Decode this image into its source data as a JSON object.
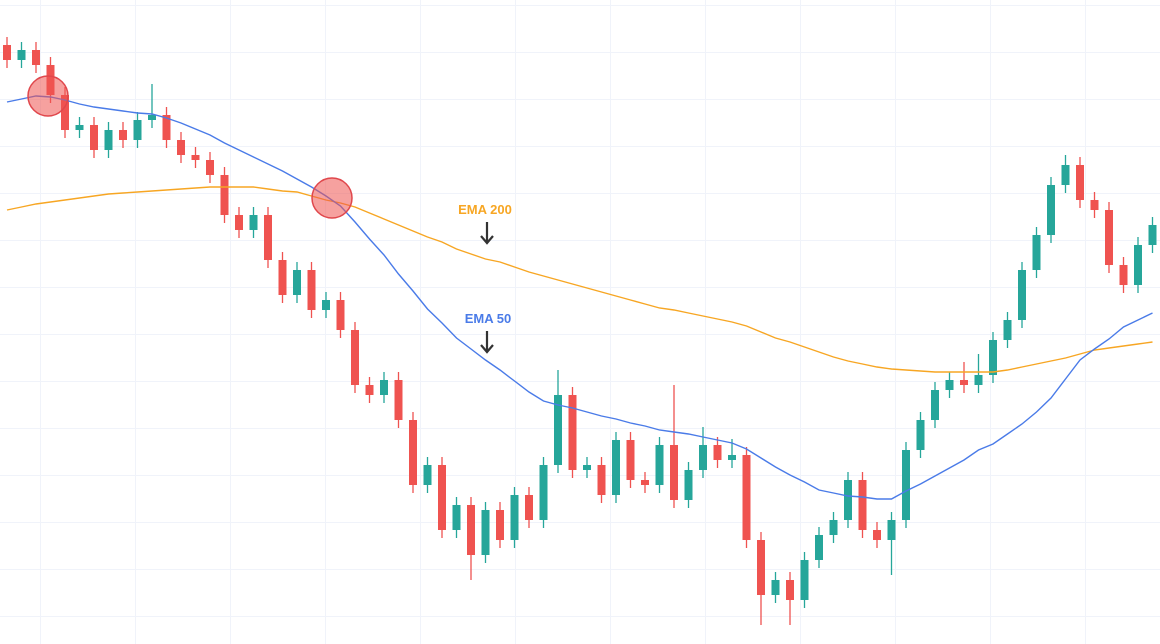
{
  "chart_data": {
    "type": "candlestick",
    "ylim": [
      0,
      644
    ],
    "up_color": "#26a69a",
    "down_color": "#ef5350",
    "open": [
      599,
      584,
      594,
      579,
      549,
      514,
      519,
      494,
      514,
      504,
      524,
      529,
      504,
      489,
      484,
      469,
      429,
      414,
      429,
      384,
      349,
      374,
      334,
      344,
      314,
      259,
      249,
      264,
      224,
      159,
      179,
      114,
      139,
      89,
      134,
      104,
      149,
      124,
      179,
      249,
      174,
      179,
      149,
      204,
      164,
      159,
      199,
      144,
      174,
      199,
      184,
      189,
      104,
      49,
      64,
      44,
      84,
      109,
      124,
      164,
      114,
      104,
      124,
      194,
      224,
      254,
      264,
      259,
      269,
      304,
      324,
      374,
      409,
      459,
      479,
      444,
      434,
      379,
      359,
      399
    ],
    "high": [
      607,
      602,
      602,
      587,
      557,
      527,
      527,
      522,
      522,
      532,
      560,
      537,
      512,
      497,
      492,
      477,
      437,
      437,
      437,
      392,
      382,
      382,
      352,
      352,
      322,
      267,
      272,
      272,
      232,
      187,
      187,
      147,
      147,
      142,
      142,
      157,
      157,
      187,
      274,
      257,
      187,
      187,
      212,
      212,
      172,
      207,
      259,
      182,
      217,
      207,
      205,
      197,
      112,
      72,
      72,
      92,
      117,
      132,
      172,
      172,
      122,
      132,
      202,
      232,
      262,
      272,
      282,
      290,
      312,
      332,
      382,
      417,
      467,
      489,
      487,
      452,
      442,
      387,
      407,
      427
    ],
    "low": [
      576,
      576,
      571,
      541,
      506,
      506,
      486,
      486,
      496,
      496,
      516,
      496,
      481,
      476,
      461,
      421,
      406,
      406,
      376,
      341,
      341,
      326,
      326,
      306,
      251,
      241,
      241,
      216,
      151,
      151,
      106,
      106,
      64,
      81,
      96,
      96,
      116,
      116,
      171,
      166,
      166,
      141,
      141,
      156,
      151,
      151,
      136,
      136,
      166,
      176,
      176,
      96,
      19,
      41,
      19,
      36,
      76,
      101,
      116,
      106,
      96,
      69,
      116,
      186,
      216,
      246,
      251,
      251,
      261,
      296,
      316,
      366,
      401,
      451,
      436,
      426,
      371,
      351,
      351,
      391
    ],
    "close": [
      584,
      594,
      579,
      549,
      514,
      519,
      494,
      514,
      504,
      524,
      529,
      504,
      489,
      484,
      469,
      429,
      414,
      429,
      384,
      349,
      374,
      334,
      344,
      314,
      259,
      249,
      264,
      224,
      159,
      179,
      114,
      139,
      89,
      134,
      104,
      149,
      124,
      179,
      249,
      174,
      179,
      149,
      204,
      164,
      159,
      199,
      144,
      174,
      199,
      184,
      189,
      104,
      49,
      64,
      44,
      84,
      109,
      124,
      164,
      114,
      104,
      124,
      194,
      224,
      254,
      264,
      259,
      269,
      304,
      324,
      374,
      409,
      459,
      479,
      444,
      434,
      379,
      359,
      399,
      419
    ],
    "series": [
      {
        "name": "EMA 200",
        "color": "#f7a623",
        "values": [
          434,
          437,
          440,
          442,
          444,
          446,
          448,
          450,
          451,
          452,
          453,
          454,
          455,
          456,
          457,
          457,
          457,
          457,
          455,
          453,
          452,
          448,
          444,
          441,
          437,
          431,
          425,
          419,
          413,
          407,
          402,
          395,
          390,
          385,
          382,
          377,
          372,
          368,
          364,
          360,
          356,
          352,
          348,
          344,
          340,
          336,
          334,
          331,
          328,
          325,
          322,
          318,
          312,
          306,
          302,
          297,
          292,
          287,
          283,
          280,
          277,
          275,
          274,
          273,
          272,
          272,
          272,
          272,
          272,
          274,
          277,
          280,
          283,
          286,
          290,
          294,
          296,
          298,
          300,
          302
        ]
      },
      {
        "name": "EMA 50",
        "color": "#4a7be8",
        "values": [
          542,
          545,
          548,
          547,
          544,
          540,
          537,
          535,
          533,
          531,
          530,
          526,
          521,
          515,
          509,
          501,
          494,
          487,
          480,
          473,
          465,
          457,
          448,
          438,
          422,
          405,
          389,
          370,
          353,
          335,
          321,
          306,
          295,
          284,
          274,
          263,
          252,
          243,
          239,
          236,
          232,
          228,
          225,
          221,
          218,
          214,
          212,
          210,
          207,
          204,
          201,
          195,
          186,
          177,
          169,
          162,
          154,
          151,
          148,
          147,
          145,
          145,
          153,
          160,
          168,
          176,
          184,
          194,
          200,
          210,
          220,
          232,
          246,
          265,
          284,
          295,
          305,
          317,
          324,
          331
        ]
      }
    ]
  }
}
